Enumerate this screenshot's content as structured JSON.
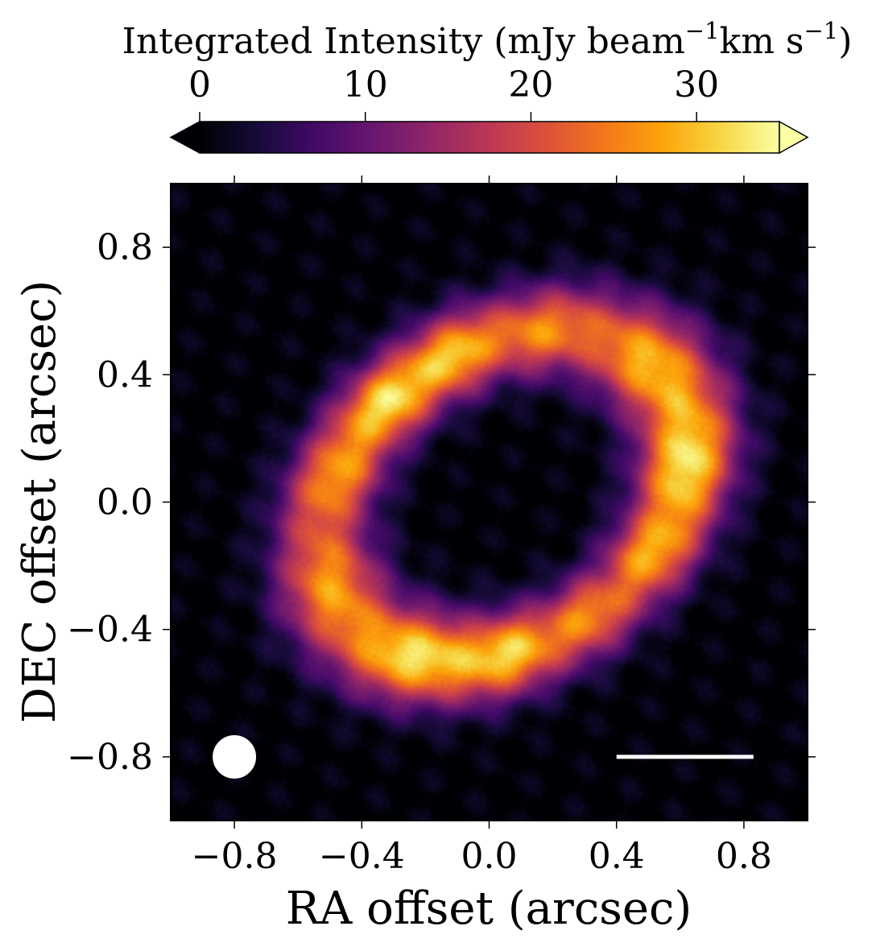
{
  "chart_data": {
    "type": "heatmap",
    "title": "",
    "xlabel": "RA offset (arcsec)",
    "ylabel": "DEC offset (arcsec)",
    "xlim": [
      -1.0,
      1.0
    ],
    "ylim": [
      -1.0,
      1.0
    ],
    "xticks": [
      -0.8,
      -0.4,
      0.0,
      0.4,
      0.8
    ],
    "yticks": [
      -0.8,
      -0.4,
      0.0,
      0.4,
      0.8
    ],
    "xtick_labels": [
      "−0.8",
      "−0.4",
      "0.0",
      "0.4",
      "0.8"
    ],
    "ytick_labels": [
      "−0.8",
      "−0.4",
      "0.0",
      "0.4",
      "0.8"
    ],
    "colorbar": {
      "label_main": "Integrated Intensity (mJy beam",
      "label_exp1": "−1",
      "label_mid": "km s",
      "label_exp2": "−1",
      "label_end": ")",
      "range": [
        0,
        35
      ],
      "ticks": [
        0,
        10,
        20,
        30
      ],
      "tick_labels": [
        "0",
        "10",
        "20",
        "30"
      ],
      "colormap": "inferno",
      "extend": "both"
    },
    "ring": {
      "center": [
        0.05,
        0.02
      ],
      "semi_major_arcsec": 0.62,
      "semi_minor_arcsec": 0.46,
      "position_angle_deg": 35,
      "width_arcsec": 0.19,
      "peak_intensity": 32
    },
    "beam": {
      "center": [
        -0.8,
        -0.8
      ],
      "diameter_arcsec": 0.13
    },
    "scale_bar": {
      "x_start": 0.4,
      "x_end": 0.83,
      "y": -0.8
    }
  }
}
